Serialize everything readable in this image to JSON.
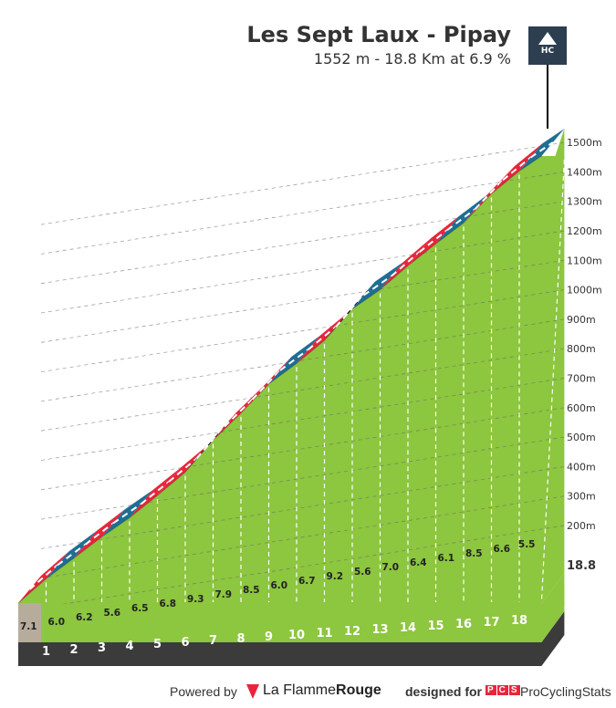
{
  "header": {
    "title": "Les Sept Laux - Pipay",
    "subtitle": "1552 m - 18.8 Km at 6.9 %",
    "category_badge": "HC"
  },
  "chart_data": {
    "type": "area",
    "title": "Les Sept Laux - Pipay",
    "subtitle": "1552 m - 18.8 Km at 6.9 %",
    "x_unit": "km",
    "y_unit": "m",
    "xlim": [
      0,
      18.8
    ],
    "ylim": [
      200,
      1500
    ],
    "km_labels": [
      "1",
      "2",
      "3",
      "4",
      "5",
      "6",
      "7",
      "8",
      "9",
      "10",
      "11",
      "12",
      "13",
      "14",
      "15",
      "16",
      "17",
      "18"
    ],
    "end_label": "18.8",
    "gradients": [
      7.1,
      6.0,
      6.2,
      5.6,
      6.5,
      6.8,
      9.3,
      7.9,
      8.5,
      6.0,
      6.7,
      9.2,
      5.6,
      7.0,
      6.4,
      6.1,
      8.5,
      6.6,
      5.5
    ],
    "elevation_ticks": [
      "200m",
      "300m",
      "400m",
      "500m",
      "600m",
      "700m",
      "800m",
      "900m",
      "1000m",
      "1100m",
      "1200m",
      "1300m",
      "1400m",
      "1500m"
    ],
    "segment_color_scale": {
      "blue": "#1f6e93",
      "red": "#e8253a",
      "black": "#111111"
    },
    "area_color": "#8dc63f"
  },
  "footer": {
    "powered_by": "Powered by",
    "lfr_brand_light": "La Flamme",
    "lfr_brand_bold": "Rouge",
    "designed_for": "designed for",
    "pcs_logo": "PCS",
    "pcs_name": "ProCyclingStats"
  }
}
